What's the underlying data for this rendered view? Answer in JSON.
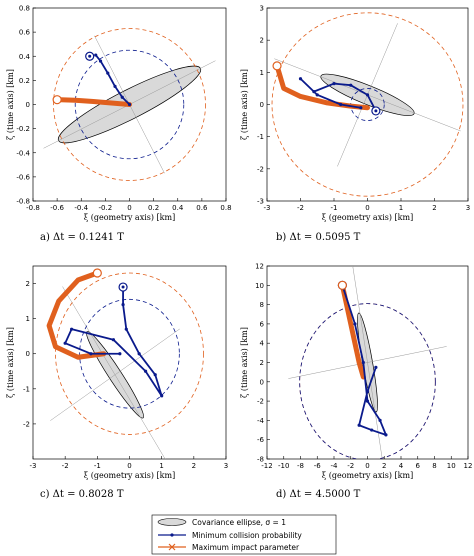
{
  "colors": {
    "covariance_fill": "#d9d9d9",
    "blue": "#0a1a8c",
    "orange": "#e0601e",
    "grid_line": "#9a9a9a"
  },
  "legend": {
    "items": [
      {
        "label": "Covariance ellipse, σ = 1",
        "kind": "ellipse"
      },
      {
        "label": "Minimum collision probability",
        "kind": "blue-dot-line"
      },
      {
        "label": "Maximum impact parameter",
        "kind": "orange-x-line"
      }
    ]
  },
  "chart_data": [
    {
      "type": "line",
      "panel": "a",
      "caption": "a) Δt = 0.1241 T",
      "xlabel": "ξ (geometry axis) [km]",
      "ylabel": "ζ (time axis) [km]",
      "xlim": [
        -0.8,
        0.8
      ],
      "ylim": [
        -0.8,
        0.8
      ],
      "xticks": [
        -0.8,
        -0.6,
        -0.4,
        -0.2,
        0,
        0.2,
        0.4,
        0.6,
        0.8
      ],
      "yticks": [
        -0.8,
        -0.6,
        -0.4,
        -0.2,
        0,
        0.2,
        0.4,
        0.6,
        0.8
      ],
      "ellipse": {
        "center": [
          0,
          0
        ],
        "semi_major": 0.66,
        "semi_minor": 0.12,
        "angle_deg": 27
      },
      "blue_circle_radius": 0.45,
      "orange_circle_radius": 0.63,
      "min_prob_path": [
        [
          -0.28,
          0.41
        ],
        [
          -0.24,
          0.36
        ],
        [
          -0.18,
          0.26
        ],
        [
          -0.12,
          0.15
        ],
        [
          -0.06,
          0.06
        ],
        [
          0.0,
          0.0
        ]
      ],
      "max_impact_path": [
        [
          -0.6,
          0.04
        ],
        [
          -0.45,
          0.035
        ],
        [
          -0.3,
          0.025
        ],
        [
          -0.15,
          0.012
        ],
        [
          0.0,
          0.0
        ]
      ],
      "min_marker": [
        -0.33,
        0.4
      ],
      "max_marker": [
        -0.6,
        0.04
      ]
    },
    {
      "type": "line",
      "panel": "b",
      "caption": "b) Δt = 0.5095 T",
      "xlabel": "ξ (geometry axis) [km]",
      "ylabel": "ζ (time axis) [km]",
      "xlim": [
        -3,
        3
      ],
      "ylim": [
        -3,
        3
      ],
      "xticks": [
        -3,
        -2,
        -1,
        0,
        1,
        2,
        3
      ],
      "yticks": [
        -3,
        -2,
        -1,
        0,
        1,
        2,
        3
      ],
      "ellipse": {
        "center": [
          0,
          0.3
        ],
        "semi_major": 1.5,
        "semi_minor": 0.28,
        "angle_deg": -22
      },
      "blue_circle_radius": 0.5,
      "orange_circle_radius": 2.85,
      "min_prob_path": [
        [
          0.25,
          -0.2
        ],
        [
          0.0,
          0.3
        ],
        [
          -0.5,
          0.6
        ],
        [
          -1.0,
          0.65
        ],
        [
          -1.6,
          0.4
        ],
        [
          -2.0,
          0.8
        ],
        [
          -1.5,
          0.3
        ],
        [
          -0.8,
          0.0
        ],
        [
          -0.2,
          -0.1
        ]
      ],
      "max_impact_path": [
        [
          -2.7,
          1.2
        ],
        [
          -2.5,
          0.5
        ],
        [
          -2.0,
          0.25
        ],
        [
          -1.2,
          0.05
        ],
        [
          -0.5,
          -0.05
        ],
        [
          0.0,
          -0.1
        ]
      ],
      "min_marker": [
        0.25,
        -0.2
      ],
      "max_marker": [
        -2.7,
        1.2
      ]
    },
    {
      "type": "line",
      "panel": "c",
      "caption": "c) Δt = 0.8028 T",
      "xlabel": "ξ (geometry axis) [km]",
      "ylabel": "ζ (time axis) [km]",
      "xlim": [
        -3,
        3
      ],
      "ylim": [
        -3,
        2.5
      ],
      "xticks": [
        -3,
        -2,
        -1,
        0,
        1,
        2,
        3
      ],
      "yticks": [
        -2,
        -1,
        0,
        1,
        2
      ],
      "ellipse": {
        "center": [
          -0.45,
          -0.6
        ],
        "semi_major": 1.6,
        "semi_minor": 0.2,
        "angle_deg": -57
      },
      "blue_circle_radius": 1.55,
      "orange_circle_radius": 2.3,
      "min_prob_path": [
        [
          -0.2,
          1.9
        ],
        [
          -0.2,
          1.4
        ],
        [
          -0.1,
          0.7
        ],
        [
          0.3,
          0.0
        ],
        [
          0.8,
          -0.6
        ],
        [
          1.0,
          -1.2
        ],
        [
          0.5,
          -0.5
        ],
        [
          -0.5,
          0.4
        ],
        [
          -1.8,
          0.7
        ],
        [
          -2.0,
          0.3
        ],
        [
          -1.2,
          0.0
        ],
        [
          -0.3,
          0.0
        ]
      ],
      "max_impact_path": [
        [
          -1.0,
          2.3
        ],
        [
          -1.6,
          2.1
        ],
        [
          -2.2,
          1.5
        ],
        [
          -2.5,
          0.8
        ],
        [
          -2.3,
          0.2
        ],
        [
          -1.6,
          -0.1
        ],
        [
          -0.8,
          0.0
        ]
      ],
      "min_marker": [
        -0.2,
        1.9
      ],
      "max_marker": [
        -1.0,
        2.3
      ]
    },
    {
      "type": "line",
      "panel": "d",
      "caption": "d) Δt = 4.5000 T",
      "xlabel": "ξ (geometry axis) [km]",
      "ylabel": "ζ (time axis) [km]",
      "xlim": [
        -12,
        12
      ],
      "ylim": [
        -8,
        12
      ],
      "xticks": [
        -12,
        -10,
        -8,
        -6,
        -4,
        -2,
        0,
        2,
        4,
        6,
        8,
        10,
        12
      ],
      "yticks": [
        -8,
        -6,
        -4,
        -2,
        0,
        2,
        4,
        6,
        8,
        10,
        12
      ],
      "ellipse": {
        "center": [
          0,
          2
        ],
        "semi_major": 6.0,
        "semi_minor": 0.6,
        "angle_deg": -80
      },
      "blue_circle_radius": 8.1,
      "orange_circle_radius": 8.1,
      "min_prob_path": [
        [
          -3.0,
          10.0
        ],
        [
          -1.5,
          6.0
        ],
        [
          -0.5,
          2.0
        ],
        [
          0.0,
          -2.0
        ],
        [
          1.5,
          -4.0
        ],
        [
          2.2,
          -5.5
        ],
        [
          0.5,
          -5.0
        ],
        [
          -1.0,
          -4.5
        ],
        [
          0.0,
          -1.0
        ],
        [
          1.0,
          1.5
        ]
      ],
      "max_impact_path": [
        [
          -3.0,
          10.0
        ],
        [
          -2.5,
          8.0
        ],
        [
          -2.0,
          6.0
        ],
        [
          -1.5,
          4.0
        ],
        [
          -1.0,
          2.0
        ],
        [
          -0.5,
          0.5
        ]
      ],
      "min_marker": [
        -3.0,
        10.0
      ],
      "max_marker": [
        -3.0,
        10.0
      ]
    }
  ]
}
